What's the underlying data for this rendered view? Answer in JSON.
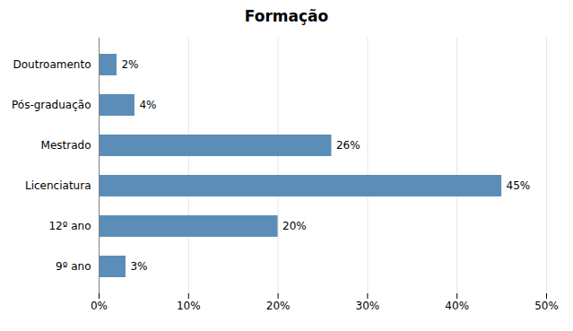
{
  "chart_data": {
    "type": "bar",
    "title": "Formação",
    "orientation": "horizontal",
    "categories": [
      "9º ano",
      "12º ano",
      "Licenciatura",
      "Mestrado",
      "Pós-graduação",
      "Doutroamento"
    ],
    "values": [
      3,
      20,
      45,
      26,
      4,
      2
    ],
    "value_labels": [
      "3%",
      "20%",
      "45%",
      "26%",
      "4%",
      "2%"
    ],
    "data_labels": true,
    "color": "#5B8DB8",
    "xlim": [
      0,
      50
    ],
    "xticks": [
      {
        "value": 0,
        "label": "0%"
      },
      {
        "value": 10,
        "label": "10%"
      },
      {
        "value": 20,
        "label": "20%"
      },
      {
        "value": 30,
        "label": "30%"
      },
      {
        "value": 40,
        "label": "40%"
      },
      {
        "value": 50,
        "label": "50%"
      }
    ],
    "grid": true
  }
}
